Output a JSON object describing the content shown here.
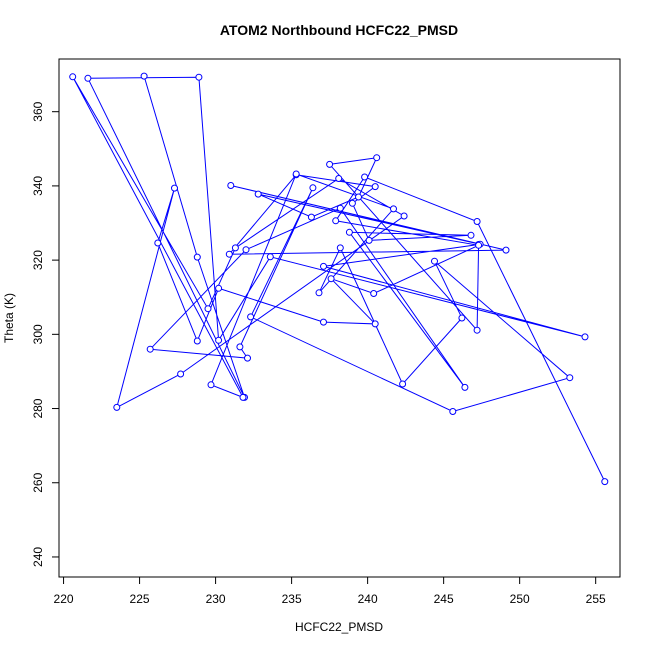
{
  "chart_data": {
    "type": "line",
    "title": "ATOM2 Northbound HCFC22_PMSD",
    "xlabel": "HCFC22_PMSD",
    "ylabel": "Theta (K)",
    "xlim": [
      219.7,
      256.6
    ],
    "ylim": [
      234.6,
      374.2
    ],
    "xticks": [
      220,
      225,
      230,
      235,
      240,
      245,
      250,
      255
    ],
    "yticks": [
      240,
      260,
      280,
      300,
      320,
      340,
      360
    ],
    "grid": false,
    "series": [
      {
        "color": "#0000ff",
        "marker": "open-circle",
        "x": [
          225.3,
          228.8,
          231.9,
          221.6,
          228.9,
          230.2,
          233.6,
          254.3,
          237.1,
          247.3,
          247.2,
          237.5,
          240.6,
          239.4,
          236.3,
          232.8,
          247.4,
          231.0,
          249.1,
          230.9,
          235.3,
          240.5,
          239.0,
          240.1,
          246.8,
          238.8,
          246.4,
          238.2,
          232.0,
          225.7,
          232.1,
          231.6,
          236.4,
          232.3,
          245.6,
          253.3,
          244.4,
          246.2,
          242.3,
          238.2,
          236.8,
          241.7,
          235.3,
          229.7,
          231.8,
          220.6,
          229.5,
          231.3,
          238.1,
          242.4,
          227.7,
          223.5,
          227.3,
          226.2,
          228.8,
          230.2,
          237.1,
          240.5,
          237.6,
          240.4,
          247.3,
          237.9,
          239.8,
          247.2,
          255.6
        ],
        "y": [
          369.6,
          320.8,
          283.0,
          369.0,
          369.3,
          298.4,
          320.9,
          299.3,
          318.3,
          324.2,
          301.1,
          345.8,
          347.6,
          337.0,
          331.6,
          337.8,
          324.3,
          340.1,
          322.7,
          321.6,
          343.0,
          339.8,
          335.3,
          325.3,
          326.7,
          327.5,
          285.7,
          334.0,
          322.8,
          296.0,
          293.6,
          296.6,
          339.5,
          304.7,
          279.2,
          288.3,
          319.7,
          304.4,
          286.6,
          323.3,
          311.2,
          333.8,
          343.2,
          286.4,
          283.0,
          369.4,
          306.9,
          323.3,
          342.0,
          331.9,
          289.3,
          280.3,
          339.4,
          324.6,
          298.2,
          312.4,
          303.3,
          302.8,
          315.0,
          311.0,
          324.0,
          330.6,
          342.4,
          330.4,
          260.3
        ]
      }
    ]
  }
}
